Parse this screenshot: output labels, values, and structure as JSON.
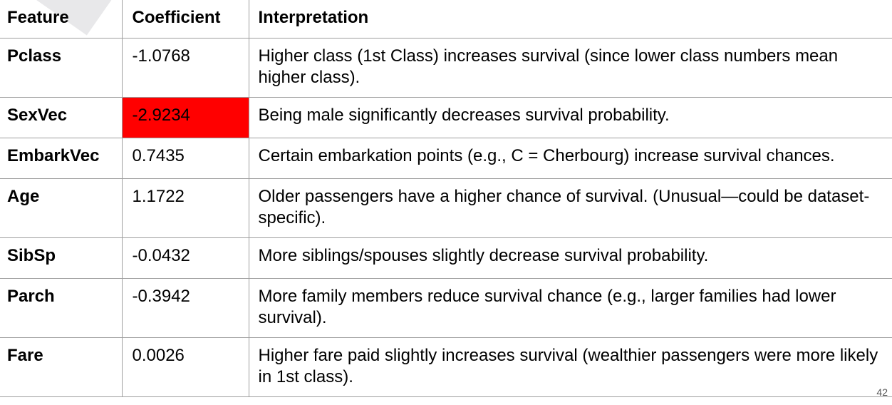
{
  "table": {
    "headers": {
      "feature": "Feature",
      "coefficient": "Coefficient",
      "interpretation": "Interpretation"
    },
    "rows": [
      {
        "feature": "Pclass",
        "coefficient": "-1.0768",
        "interpretation": "Higher class (1st Class) increases survival (since lower class numbers mean higher class)."
      },
      {
        "feature": "SexVec",
        "coefficient": "-2.9234",
        "interpretation": "Being male significantly decreases survival probability.",
        "highlight_color": "#ff0000"
      },
      {
        "feature": "EmbarkVec",
        "coefficient": "0.7435",
        "interpretation": "Certain embarkation points (e.g., C = Cherbourg) increase survival chances."
      },
      {
        "feature": "Age",
        "coefficient": "1.1722",
        "interpretation": "Older passengers have a higher chance of survival. (Unusual—could be dataset-specific)."
      },
      {
        "feature": "SibSp",
        "coefficient": "-0.0432",
        "interpretation": "More siblings/spouses slightly decrease survival probability."
      },
      {
        "feature": "Parch",
        "coefficient": "-0.3942",
        "interpretation": "More family members reduce survival chance (e.g., larger families had lower survival)."
      },
      {
        "feature": "Fare",
        "coefficient": "0.0026",
        "interpretation": "Higher fare paid slightly increases survival (wealthier passengers were more likely in 1st class)."
      }
    ]
  },
  "slide": {
    "number": "42"
  },
  "colors": {
    "grid": "#9e9e9e",
    "highlight": "#ff0000",
    "background": "#ffffff"
  }
}
